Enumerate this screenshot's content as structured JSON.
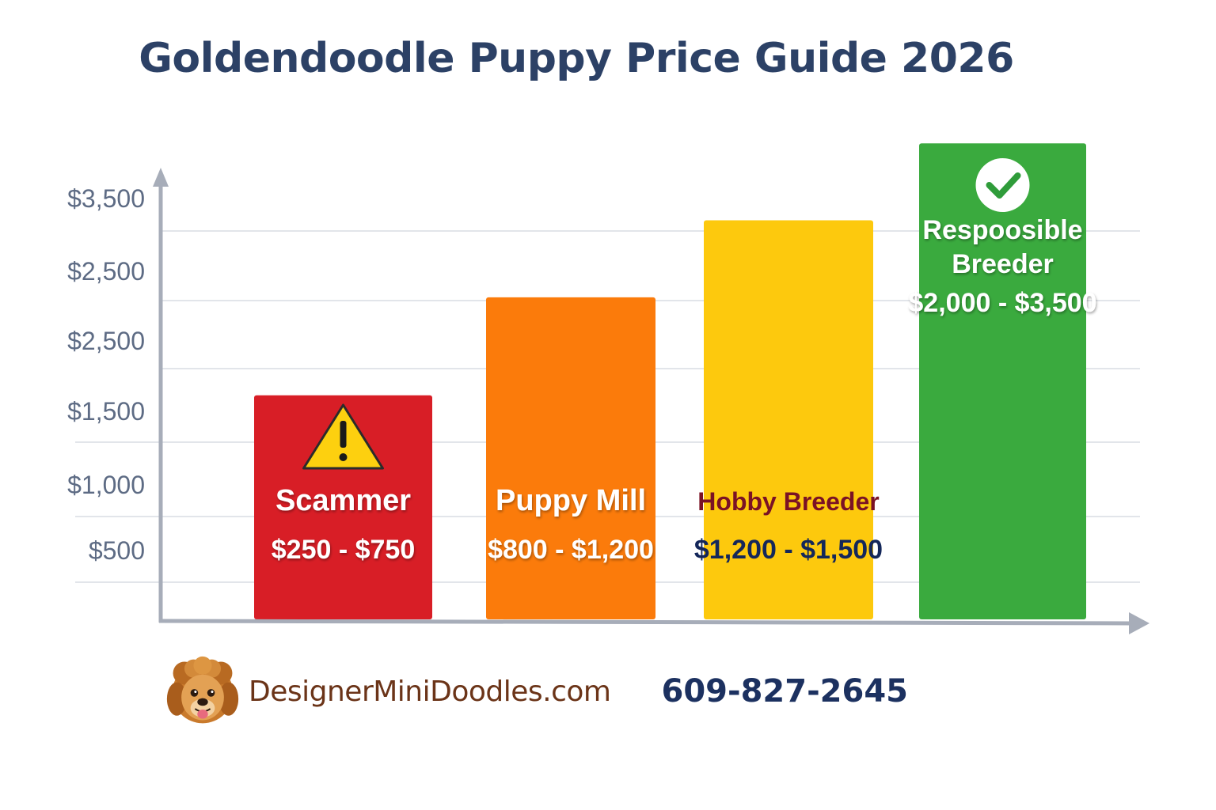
{
  "title": "Goldendoodle Puppy Price Guide 2026",
  "chart_data": {
    "type": "bar",
    "title": "Goldendoodle Puppy Price Guide 2026",
    "xlabel": "",
    "ylabel": "",
    "y_tick_labels": [
      "$3,500",
      "$2,500",
      "$2,500",
      "$1,500",
      "$1,000",
      "$500"
    ],
    "grid": true,
    "categories": [
      "Scammer",
      "Puppy Mill",
      "Hobby Breeder",
      "Respoosible Breeder"
    ],
    "ranges": [
      "$250 - $750",
      "$800 - $1,200",
      "$1,200 - $1,500",
      "$2,000 - $3,500"
    ],
    "values": [
      1.6,
      2.3,
      2.85,
      3.4
    ],
    "colors": [
      "#d81e26",
      "#fb7b0b",
      "#fdc90d",
      "#3aaa3e"
    ],
    "label_colors": [
      "#ffffff",
      "#ffffff",
      "#7a1225",
      "#ffffff"
    ],
    "range_colors": [
      "#ffffff",
      "#ffffff",
      "#14275a",
      "#ffffff"
    ],
    "icons": [
      "warning-icon",
      "",
      "",
      "check-circle-icon"
    ]
  },
  "footer": {
    "site": "DesignerMiniDoodles.com",
    "phone": "609-827-2645",
    "logo_icon": "dog-face-icon"
  }
}
